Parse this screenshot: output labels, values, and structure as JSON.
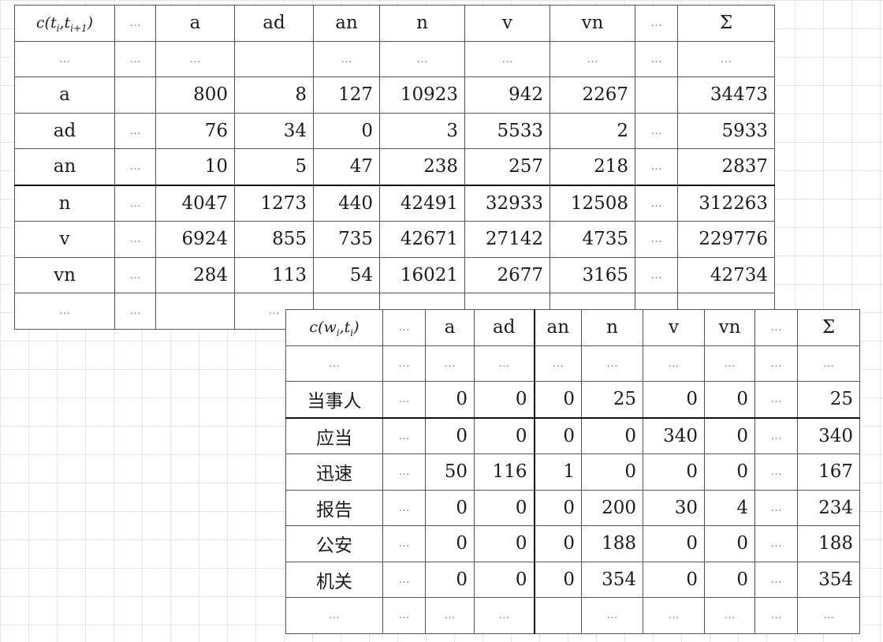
{
  "table1": {
    "corner": {
      "fn": "c",
      "open": "(",
      "a": "t",
      "a_sub": "i",
      "comma": ",",
      "b": "t",
      "b_sub": "i+1",
      "close": ")"
    },
    "headers": [
      "…",
      "a",
      "ad",
      "an",
      "n",
      "v",
      "vn",
      "…",
      "Σ"
    ],
    "rows": [
      {
        "label": "…",
        "cells": [
          "…",
          "…",
          "",
          "…",
          "…",
          "…",
          "…",
          "…",
          "…"
        ]
      },
      {
        "label": "a",
        "cells": [
          "",
          "800",
          "8",
          "127",
          "10923",
          "942",
          "2267",
          "",
          "34473"
        ]
      },
      {
        "label": "ad",
        "cells": [
          "…",
          "76",
          "34",
          "0",
          "3",
          "5533",
          "2",
          "…",
          "5933"
        ]
      },
      {
        "label": "an",
        "cells": [
          "…",
          "10",
          "5",
          "47",
          "238",
          "257",
          "218",
          "…",
          "2837"
        ]
      },
      {
        "label": "n",
        "cells": [
          "…",
          "4047",
          "1273",
          "440",
          "42491",
          "32933",
          "12508",
          "…",
          "312263"
        ]
      },
      {
        "label": "v",
        "cells": [
          "…",
          "6924",
          "855",
          "735",
          "42671",
          "27142",
          "4735",
          "…",
          "229776"
        ]
      },
      {
        "label": "vn",
        "cells": [
          "…",
          "284",
          "113",
          "54",
          "16021",
          "2677",
          "3165",
          "…",
          "42734"
        ]
      },
      {
        "label": "…",
        "cells": [
          "…",
          "",
          "…",
          "",
          "",
          "",
          "",
          "",
          ""
        ]
      }
    ]
  },
  "table2": {
    "corner": {
      "fn": "c",
      "open": "(",
      "a": "w",
      "a_sub": "i",
      "comma": ",",
      "b": "t",
      "b_sub": "i",
      "close": ")"
    },
    "headers": [
      "…",
      "a",
      "ad",
      "an",
      "n",
      "v",
      "vn",
      "…",
      "Σ"
    ],
    "rows": [
      {
        "label": "…",
        "cells": [
          "…",
          "…",
          "…",
          "…",
          "…",
          "…",
          "…",
          "…",
          "…"
        ]
      },
      {
        "label": "当事人",
        "cells": [
          "…",
          "0",
          "0",
          "0",
          "25",
          "0",
          "0",
          "…",
          "25"
        ]
      },
      {
        "label": "应当",
        "cells": [
          "…",
          "0",
          "0",
          "0",
          "0",
          "340",
          "0",
          "…",
          "340"
        ]
      },
      {
        "label": "迅速",
        "cells": [
          "…",
          "50",
          "116",
          "1",
          "0",
          "0",
          "0",
          "…",
          "167"
        ]
      },
      {
        "label": "报告",
        "cells": [
          "…",
          "0",
          "0",
          "0",
          "200",
          "30",
          "4",
          "…",
          "234"
        ]
      },
      {
        "label": "公安",
        "cells": [
          "…",
          "0",
          "0",
          "0",
          "188",
          "0",
          "0",
          "…",
          "188"
        ]
      },
      {
        "label": "机关",
        "cells": [
          "…",
          "0",
          "0",
          "0",
          "354",
          "0",
          "0",
          "…",
          "354"
        ]
      },
      {
        "label": "…",
        "cells": [
          "…",
          "…",
          "…",
          "",
          "…",
          "…",
          "…",
          "…",
          "…"
        ]
      }
    ]
  }
}
